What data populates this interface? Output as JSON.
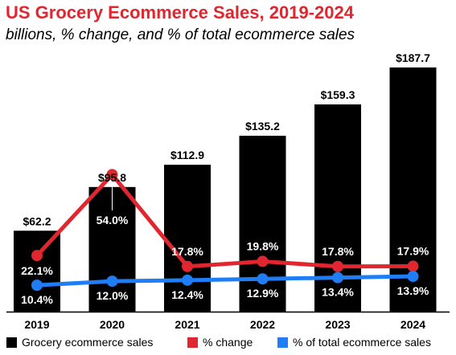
{
  "chart_data": {
    "type": "bar",
    "title": "US Grocery Ecommerce Sales, 2019-2024",
    "subtitle": "billions, % change, and % of total ecommerce sales",
    "categories": [
      "2019",
      "2020",
      "2021",
      "2022",
      "2023",
      "2024"
    ],
    "series": [
      {
        "name": "Grocery ecommerce sales",
        "type": "bar",
        "color": "#000000",
        "values": [
          62.2,
          95.8,
          112.9,
          135.2,
          159.3,
          187.7
        ],
        "labels": [
          "$62.2",
          "$95.8",
          "$112.9",
          "$135.2",
          "$159.3",
          "$187.7"
        ]
      },
      {
        "name": "% change",
        "type": "line",
        "color": "#e0262f",
        "values": [
          22.1,
          54.0,
          17.8,
          19.8,
          17.8,
          17.9
        ],
        "labels": [
          "22.1%",
          "54.0%",
          "17.8%",
          "19.8%",
          "17.8%",
          "17.9%"
        ]
      },
      {
        "name": "% of total ecommerce sales",
        "type": "line",
        "color": "#1f7ef5",
        "values": [
          10.4,
          12.0,
          12.4,
          12.9,
          13.4,
          13.9
        ],
        "labels": [
          "10.4%",
          "12.0%",
          "12.4%",
          "12.9%",
          "13.4%",
          "13.9%"
        ]
      }
    ],
    "bar_ylim": [
      0,
      200
    ],
    "line_ylim": [
      0,
      75
    ],
    "grid": false,
    "legend_position": "bottom"
  }
}
